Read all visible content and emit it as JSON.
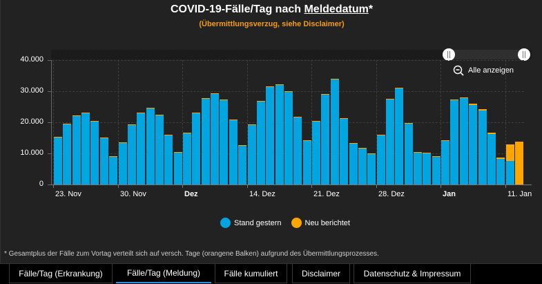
{
  "header": {
    "title_prefix": "COVID-19-Fälle/Tag nach ",
    "title_link": "Meldedatum",
    "title_suffix": "*",
    "subtitle": "(Übermittlungsverzug, siehe Disclaimer)"
  },
  "zoom_control": {
    "label": "Alle anzeigen",
    "icon": "zoom-out-icon"
  },
  "legend": [
    {
      "label": "Stand gestern",
      "color": "#03a5e0"
    },
    {
      "label": "Neu berichtet",
      "color": "#ffa500"
    }
  ],
  "footnote": "* Gesamtplus der Fälle zum Vortag verteilt sich auf versch. Tage (orangene Balken) aufgrund des Übermittlungsprozesses.",
  "tabs": [
    {
      "label": "Fälle/Tag (Erkrankung)",
      "active": false
    },
    {
      "label": "Fälle/Tag (Meldung)",
      "active": true
    },
    {
      "label": "Fälle kumuliert",
      "active": false
    },
    {
      "label": "Disclaimer",
      "active": false
    },
    {
      "label": "Datenschutz & Impressum",
      "active": false
    }
  ],
  "chart_data": {
    "type": "bar",
    "stacked": true,
    "title": "COVID-19-Fälle/Tag nach Meldedatum*",
    "subtitle": "(Übermittlungsverzug, siehe Disclaimer)",
    "xlabel": "",
    "ylabel": "",
    "ylim": [
      0,
      40000
    ],
    "y_ticks": [
      "0",
      "10.000",
      "20.000",
      "30.000",
      "40.000"
    ],
    "x_tick_labels": [
      {
        "label": "23. Nov",
        "bold": false
      },
      {
        "label": "30. Nov",
        "bold": false
      },
      {
        "label": "Dez",
        "bold": true
      },
      {
        "label": "14. Dez",
        "bold": false
      },
      {
        "label": "21. Dez",
        "bold": false
      },
      {
        "label": "28. Dez",
        "bold": false
      },
      {
        "label": "Jan",
        "bold": true
      },
      {
        "label": "11. Jan",
        "bold": false
      }
    ],
    "grid": true,
    "legend_position": "bottom",
    "categories": [
      "23.11",
      "24.11",
      "25.11",
      "26.11",
      "27.11",
      "28.11",
      "29.11",
      "30.11",
      "01.12",
      "02.12",
      "03.12",
      "04.12",
      "05.12",
      "06.12",
      "07.12",
      "08.12",
      "09.12",
      "10.12",
      "11.12",
      "12.12",
      "13.12",
      "14.12",
      "15.12",
      "16.12",
      "17.12",
      "18.12",
      "19.12",
      "20.12",
      "21.12",
      "22.12",
      "23.12",
      "24.12",
      "25.12",
      "26.12",
      "27.12",
      "28.12",
      "29.12",
      "30.12",
      "31.12",
      "01.01",
      "02.01",
      "03.01",
      "04.01",
      "05.01",
      "06.01",
      "07.01",
      "08.01",
      "09.01",
      "10.01",
      "11.01",
      "12.01"
    ],
    "series": [
      {
        "name": "Stand gestern",
        "color": "#03a5e0",
        "values": [
          15100,
          19300,
          22000,
          22900,
          20200,
          14900,
          8900,
          13300,
          19100,
          22900,
          24500,
          22200,
          15800,
          10200,
          16500,
          22900,
          27600,
          29100,
          27100,
          20700,
          12500,
          19100,
          26700,
          31400,
          32000,
          29800,
          21600,
          14000,
          20200,
          28900,
          33800,
          21100,
          13100,
          11600,
          9800,
          15800,
          27400,
          30900,
          19600,
          10200,
          10000,
          8900,
          14000,
          27100,
          27800,
          25600,
          23700,
          16300,
          8200,
          7600,
          0
        ]
      },
      {
        "name": "Neu berichtet",
        "color": "#ffa500",
        "values": [
          200,
          200,
          200,
          200,
          200,
          200,
          200,
          200,
          200,
          200,
          200,
          200,
          200,
          200,
          200,
          200,
          200,
          200,
          200,
          200,
          200,
          200,
          200,
          200,
          200,
          200,
          200,
          200,
          200,
          200,
          200,
          200,
          200,
          200,
          200,
          200,
          200,
          200,
          200,
          200,
          200,
          200,
          200,
          200,
          200,
          400,
          500,
          400,
          500,
          5300,
          13800
        ]
      }
    ]
  }
}
